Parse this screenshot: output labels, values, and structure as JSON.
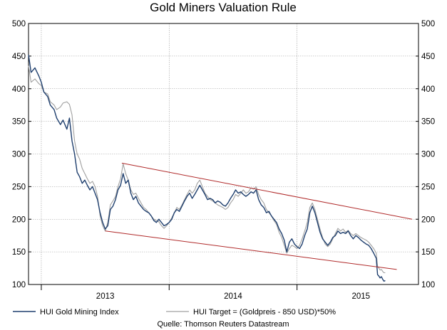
{
  "chart_data": {
    "type": "line",
    "title": "Gold Miners Valuation Rule",
    "source": "Quelle: Thomson Reuters Datastream",
    "ylim": [
      100,
      500
    ],
    "yticks": [
      100,
      150,
      200,
      250,
      300,
      350,
      400,
      450,
      500
    ],
    "xlim": [
      2012.4,
      2015.45
    ],
    "xticks": [
      {
        "label": "2013",
        "value": 2013.0
      },
      {
        "label": "2014",
        "value": 2014.0
      },
      {
        "label": "2015",
        "value": 2015.0
      }
    ],
    "year_separators": [
      2012.5,
      2013.5,
      2014.5
    ],
    "grid": true,
    "series": [
      {
        "name": "HUI Gold Mining Index",
        "color": "#1f3f6e",
        "points": [
          [
            2012.4,
            452
          ],
          [
            2012.42,
            425
          ],
          [
            2012.45,
            432
          ],
          [
            2012.48,
            420
          ],
          [
            2012.5,
            410
          ],
          [
            2012.52,
            395
          ],
          [
            2012.55,
            388
          ],
          [
            2012.57,
            375
          ],
          [
            2012.6,
            368
          ],
          [
            2012.62,
            355
          ],
          [
            2012.65,
            345
          ],
          [
            2012.67,
            352
          ],
          [
            2012.7,
            338
          ],
          [
            2012.72,
            355
          ],
          [
            2012.74,
            320
          ],
          [
            2012.76,
            300
          ],
          [
            2012.78,
            272
          ],
          [
            2012.8,
            265
          ],
          [
            2012.82,
            255
          ],
          [
            2012.84,
            260
          ],
          [
            2012.86,
            252
          ],
          [
            2012.88,
            245
          ],
          [
            2012.9,
            250
          ],
          [
            2012.92,
            240
          ],
          [
            2012.94,
            230
          ],
          [
            2012.96,
            210
          ],
          [
            2012.98,
            195
          ],
          [
            2013.0,
            185
          ],
          [
            2013.02,
            190
          ],
          [
            2013.04,
            215
          ],
          [
            2013.06,
            220
          ],
          [
            2013.08,
            230
          ],
          [
            2013.1,
            245
          ],
          [
            2013.12,
            252
          ],
          [
            2013.14,
            270
          ],
          [
            2013.16,
            255
          ],
          [
            2013.18,
            260
          ],
          [
            2013.2,
            240
          ],
          [
            2013.22,
            230
          ],
          [
            2013.24,
            235
          ],
          [
            2013.26,
            225
          ],
          [
            2013.28,
            220
          ],
          [
            2013.3,
            215
          ],
          [
            2013.32,
            212
          ],
          [
            2013.34,
            210
          ],
          [
            2013.36,
            205
          ],
          [
            2013.38,
            198
          ],
          [
            2013.4,
            195
          ],
          [
            2013.42,
            200
          ],
          [
            2013.44,
            195
          ],
          [
            2013.46,
            190
          ],
          [
            2013.48,
            192
          ],
          [
            2013.5,
            195
          ],
          [
            2013.52,
            200
          ],
          [
            2013.54,
            210
          ],
          [
            2013.56,
            215
          ],
          [
            2013.58,
            212
          ],
          [
            2013.6,
            220
          ],
          [
            2013.62,
            228
          ],
          [
            2013.64,
            235
          ],
          [
            2013.66,
            240
          ],
          [
            2013.68,
            232
          ],
          [
            2013.7,
            238
          ],
          [
            2013.72,
            245
          ],
          [
            2013.74,
            252
          ],
          [
            2013.76,
            245
          ],
          [
            2013.78,
            238
          ],
          [
            2013.8,
            230
          ],
          [
            2013.82,
            232
          ],
          [
            2013.84,
            230
          ],
          [
            2013.86,
            225
          ],
          [
            2013.88,
            228
          ],
          [
            2013.9,
            226
          ],
          [
            2013.92,
            222
          ],
          [
            2013.94,
            220
          ],
          [
            2013.96,
            225
          ],
          [
            2013.98,
            232
          ],
          [
            2014.0,
            238
          ],
          [
            2014.02,
            245
          ],
          [
            2014.04,
            240
          ],
          [
            2014.06,
            242
          ],
          [
            2014.08,
            238
          ],
          [
            2014.1,
            235
          ],
          [
            2014.12,
            238
          ],
          [
            2014.14,
            242
          ],
          [
            2014.16,
            240
          ],
          [
            2014.18,
            245
          ],
          [
            2014.2,
            230
          ],
          [
            2014.22,
            222
          ],
          [
            2014.24,
            218
          ],
          [
            2014.26,
            210
          ],
          [
            2014.28,
            212
          ],
          [
            2014.3,
            205
          ],
          [
            2014.32,
            200
          ],
          [
            2014.34,
            195
          ],
          [
            2014.36,
            185
          ],
          [
            2014.38,
            178
          ],
          [
            2014.4,
            168
          ],
          [
            2014.42,
            150
          ],
          [
            2014.44,
            165
          ],
          [
            2014.46,
            170
          ],
          [
            2014.48,
            162
          ],
          [
            2014.5,
            158
          ],
          [
            2014.52,
            155
          ],
          [
            2014.54,
            162
          ],
          [
            2014.56,
            175
          ],
          [
            2014.58,
            185
          ],
          [
            2014.6,
            210
          ],
          [
            2014.62,
            220
          ],
          [
            2014.64,
            210
          ],
          [
            2014.66,
            195
          ],
          [
            2014.68,
            180
          ],
          [
            2014.7,
            170
          ],
          [
            2014.72,
            165
          ],
          [
            2014.74,
            160
          ],
          [
            2014.76,
            165
          ],
          [
            2014.78,
            172
          ],
          [
            2014.8,
            175
          ],
          [
            2014.82,
            182
          ],
          [
            2014.84,
            178
          ],
          [
            2014.86,
            180
          ],
          [
            2014.88,
            178
          ],
          [
            2014.9,
            182
          ],
          [
            2014.92,
            175
          ],
          [
            2014.94,
            170
          ],
          [
            2014.96,
            175
          ],
          [
            2014.98,
            172
          ],
          [
            2015.0,
            168
          ],
          [
            2015.02,
            165
          ],
          [
            2015.04,
            162
          ],
          [
            2015.06,
            160
          ],
          [
            2015.08,
            155
          ],
          [
            2015.1,
            148
          ],
          [
            2015.12,
            140
          ],
          [
            2015.13,
            115
          ],
          [
            2015.14,
            113
          ],
          [
            2015.15,
            110
          ],
          [
            2015.16,
            112
          ],
          [
            2015.17,
            108
          ],
          [
            2015.18,
            105
          ],
          [
            2015.19,
            106
          ]
        ]
      },
      {
        "name": "HUI Target = (Goldpreis - 850 USD)*50%",
        "color": "#a0a0a0",
        "points": [
          [
            2012.4,
            435
          ],
          [
            2012.42,
            410
          ],
          [
            2012.45,
            415
          ],
          [
            2012.48,
            408
          ],
          [
            2012.5,
            405
          ],
          [
            2012.52,
            395
          ],
          [
            2012.55,
            392
          ],
          [
            2012.57,
            380
          ],
          [
            2012.6,
            375
          ],
          [
            2012.62,
            368
          ],
          [
            2012.65,
            372
          ],
          [
            2012.67,
            378
          ],
          [
            2012.7,
            380
          ],
          [
            2012.72,
            376
          ],
          [
            2012.74,
            360
          ],
          [
            2012.76,
            320
          ],
          [
            2012.78,
            300
          ],
          [
            2012.8,
            292
          ],
          [
            2012.82,
            278
          ],
          [
            2012.84,
            270
          ],
          [
            2012.86,
            262
          ],
          [
            2012.88,
            255
          ],
          [
            2012.9,
            258
          ],
          [
            2012.92,
            250
          ],
          [
            2012.94,
            235
          ],
          [
            2012.96,
            205
          ],
          [
            2012.98,
            190
          ],
          [
            2013.0,
            182
          ],
          [
            2013.02,
            195
          ],
          [
            2013.04,
            222
          ],
          [
            2013.06,
            228
          ],
          [
            2013.08,
            235
          ],
          [
            2013.1,
            250
          ],
          [
            2013.12,
            262
          ],
          [
            2013.14,
            285
          ],
          [
            2013.16,
            270
          ],
          [
            2013.18,
            260
          ],
          [
            2013.2,
            245
          ],
          [
            2013.22,
            238
          ],
          [
            2013.24,
            240
          ],
          [
            2013.26,
            232
          ],
          [
            2013.28,
            225
          ],
          [
            2013.3,
            218
          ],
          [
            2013.32,
            215
          ],
          [
            2013.34,
            210
          ],
          [
            2013.36,
            205
          ],
          [
            2013.38,
            200
          ],
          [
            2013.4,
            198
          ],
          [
            2013.42,
            196
          ],
          [
            2013.44,
            190
          ],
          [
            2013.46,
            186
          ],
          [
            2013.48,
            190
          ],
          [
            2013.5,
            195
          ],
          [
            2013.52,
            202
          ],
          [
            2013.54,
            210
          ],
          [
            2013.56,
            218
          ],
          [
            2013.58,
            215
          ],
          [
            2013.6,
            222
          ],
          [
            2013.62,
            230
          ],
          [
            2013.64,
            238
          ],
          [
            2013.66,
            245
          ],
          [
            2013.68,
            240
          ],
          [
            2013.7,
            245
          ],
          [
            2013.72,
            255
          ],
          [
            2013.74,
            260
          ],
          [
            2013.76,
            250
          ],
          [
            2013.78,
            240
          ],
          [
            2013.8,
            235
          ],
          [
            2013.82,
            230
          ],
          [
            2013.84,
            228
          ],
          [
            2013.86,
            225
          ],
          [
            2013.88,
            222
          ],
          [
            2013.9,
            220
          ],
          [
            2013.92,
            218
          ],
          [
            2013.94,
            215
          ],
          [
            2013.96,
            218
          ],
          [
            2013.98,
            225
          ],
          [
            2014.0,
            230
          ],
          [
            2014.02,
            238
          ],
          [
            2014.04,
            235
          ],
          [
            2014.06,
            240
          ],
          [
            2014.08,
            245
          ],
          [
            2014.1,
            240
          ],
          [
            2014.12,
            242
          ],
          [
            2014.14,
            248
          ],
          [
            2014.16,
            246
          ],
          [
            2014.18,
            250
          ],
          [
            2014.2,
            238
          ],
          [
            2014.22,
            230
          ],
          [
            2014.24,
            225
          ],
          [
            2014.26,
            215
          ],
          [
            2014.28,
            210
          ],
          [
            2014.3,
            205
          ],
          [
            2014.32,
            198
          ],
          [
            2014.34,
            192
          ],
          [
            2014.36,
            180
          ],
          [
            2014.38,
            172
          ],
          [
            2014.4,
            160
          ],
          [
            2014.42,
            148
          ],
          [
            2014.44,
            155
          ],
          [
            2014.46,
            160
          ],
          [
            2014.48,
            158
          ],
          [
            2014.5,
            155
          ],
          [
            2014.52,
            160
          ],
          [
            2014.54,
            170
          ],
          [
            2014.56,
            182
          ],
          [
            2014.58,
            195
          ],
          [
            2014.6,
            218
          ],
          [
            2014.62,
            225
          ],
          [
            2014.64,
            215
          ],
          [
            2014.66,
            200
          ],
          [
            2014.68,
            185
          ],
          [
            2014.7,
            172
          ],
          [
            2014.72,
            162
          ],
          [
            2014.74,
            158
          ],
          [
            2014.76,
            162
          ],
          [
            2014.78,
            170
          ],
          [
            2014.8,
            178
          ],
          [
            2014.82,
            186
          ],
          [
            2014.84,
            182
          ],
          [
            2014.86,
            185
          ],
          [
            2014.88,
            180
          ],
          [
            2014.9,
            183
          ],
          [
            2014.92,
            178
          ],
          [
            2014.94,
            175
          ],
          [
            2014.96,
            178
          ],
          [
            2014.98,
            175
          ],
          [
            2015.0,
            172
          ],
          [
            2015.02,
            170
          ],
          [
            2015.04,
            168
          ],
          [
            2015.06,
            165
          ],
          [
            2015.08,
            160
          ],
          [
            2015.1,
            155
          ],
          [
            2015.12,
            148
          ],
          [
            2015.13,
            128
          ],
          [
            2015.14,
            125
          ],
          [
            2015.15,
            122
          ],
          [
            2015.16,
            123
          ],
          [
            2015.17,
            120
          ],
          [
            2015.18,
            118
          ],
          [
            2015.19,
            118
          ]
        ]
      }
    ],
    "trendlines": [
      {
        "name": "upper-channel-line",
        "color": "#b02a2a",
        "from": [
          2013.13,
          286
        ],
        "to": [
          2015.4,
          200
        ]
      },
      {
        "name": "lower-channel-line",
        "color": "#b02a2a",
        "from": [
          2013.0,
          182
        ],
        "to": [
          2015.28,
          123
        ]
      }
    ]
  }
}
